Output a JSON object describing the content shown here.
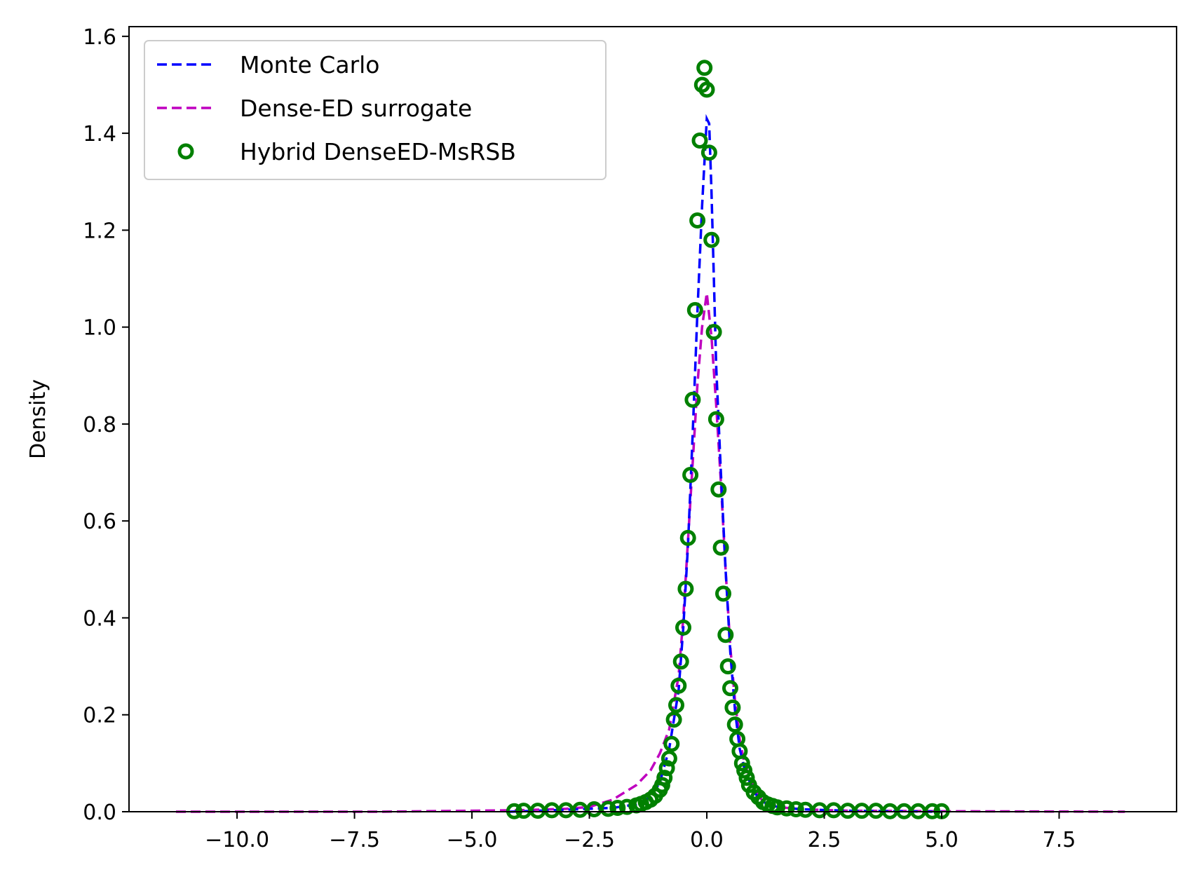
{
  "chart_data": {
    "type": "line",
    "ylabel": "Density",
    "xlim": [
      -12.3,
      10.0
    ],
    "ylim": [
      0.0,
      1.62
    ],
    "x_ticks": [
      -10.0,
      -7.5,
      -5.0,
      -2.5,
      0.0,
      2.5,
      5.0,
      7.5
    ],
    "x_tick_labels": [
      "−10.0",
      "−7.5",
      "−5.0",
      "−2.5",
      "0.0",
      "2.5",
      "5.0",
      "7.5"
    ],
    "y_ticks": [
      0.0,
      0.2,
      0.4,
      0.6,
      0.8,
      1.0,
      1.2,
      1.4,
      1.6
    ],
    "y_tick_labels": [
      "0.0",
      "0.2",
      "0.4",
      "0.6",
      "0.8",
      "1.0",
      "1.2",
      "1.4",
      "1.6"
    ],
    "grid": false,
    "legend_position": "top-left",
    "series": [
      {
        "name": "Monte Carlo",
        "style": "dashed-line",
        "color": "#0000ff",
        "x": [
          -4.2,
          -3.0,
          -2.0,
          -1.5,
          -1.2,
          -1.0,
          -0.8,
          -0.6,
          -0.5,
          -0.4,
          -0.3,
          -0.2,
          -0.1,
          0.0,
          0.05,
          0.1,
          0.15,
          0.2,
          0.3,
          0.4,
          0.5,
          0.6,
          0.7,
          0.8,
          1.0,
          1.2,
          1.5,
          2.0,
          3.0,
          5.0
        ],
        "y": [
          0.0,
          0.004,
          0.008,
          0.015,
          0.03,
          0.06,
          0.13,
          0.25,
          0.38,
          0.55,
          0.78,
          1.03,
          1.25,
          1.43,
          1.42,
          1.28,
          1.1,
          0.92,
          0.7,
          0.5,
          0.33,
          0.21,
          0.13,
          0.09,
          0.04,
          0.02,
          0.01,
          0.005,
          0.002,
          0.0
        ]
      },
      {
        "name": "Dense-ED surrogate",
        "style": "dashed-line",
        "color": "#bf00bf",
        "x": [
          -11.3,
          -7.0,
          -5.0,
          -4.0,
          -3.0,
          -2.5,
          -2.0,
          -1.5,
          -1.2,
          -1.0,
          -0.8,
          -0.6,
          -0.5,
          -0.4,
          -0.3,
          -0.2,
          -0.1,
          0.0,
          0.1,
          0.2,
          0.3,
          0.4,
          0.5,
          0.6,
          0.7,
          0.8,
          1.0,
          1.2,
          1.5,
          2.0,
          3.0,
          5.0,
          8.9
        ],
        "y": [
          0.0,
          0.0,
          0.002,
          0.003,
          0.006,
          0.01,
          0.025,
          0.055,
          0.085,
          0.12,
          0.17,
          0.28,
          0.4,
          0.56,
          0.72,
          0.88,
          1.0,
          1.07,
          0.98,
          0.84,
          0.68,
          0.5,
          0.34,
          0.23,
          0.15,
          0.1,
          0.05,
          0.02,
          0.01,
          0.005,
          0.002,
          0.001,
          0.0
        ]
      },
      {
        "name": "Hybrid DenseED-MsRSB",
        "style": "open-circle",
        "color": "#008000",
        "x": [
          -4.1,
          -3.9,
          -3.6,
          -3.3,
          -3.0,
          -2.7,
          -2.4,
          -2.1,
          -1.9,
          -1.7,
          -1.5,
          -1.4,
          -1.3,
          -1.2,
          -1.1,
          -1.0,
          -0.95,
          -0.9,
          -0.85,
          -0.8,
          -0.75,
          -0.7,
          -0.65,
          -0.6,
          -0.55,
          -0.5,
          -0.45,
          -0.4,
          -0.35,
          -0.3,
          -0.25,
          -0.2,
          -0.15,
          -0.1,
          -0.05,
          0.0,
          0.05,
          0.1,
          0.15,
          0.2,
          0.25,
          0.3,
          0.35,
          0.4,
          0.45,
          0.5,
          0.55,
          0.6,
          0.65,
          0.7,
          0.75,
          0.8,
          0.85,
          0.9,
          1.0,
          1.1,
          1.2,
          1.3,
          1.4,
          1.5,
          1.7,
          1.9,
          2.1,
          2.4,
          2.7,
          3.0,
          3.3,
          3.6,
          3.9,
          4.2,
          4.5,
          4.8,
          5.0
        ],
        "y": [
          0.001,
          0.002,
          0.002,
          0.003,
          0.003,
          0.004,
          0.005,
          0.006,
          0.008,
          0.01,
          0.013,
          0.016,
          0.02,
          0.025,
          0.033,
          0.045,
          0.055,
          0.07,
          0.09,
          0.11,
          0.14,
          0.19,
          0.22,
          0.26,
          0.31,
          0.38,
          0.46,
          0.565,
          0.695,
          0.85,
          1.035,
          1.22,
          1.385,
          1.5,
          1.535,
          1.49,
          1.36,
          1.18,
          0.99,
          0.81,
          0.665,
          0.545,
          0.45,
          0.365,
          0.3,
          0.255,
          0.215,
          0.18,
          0.15,
          0.125,
          0.1,
          0.085,
          0.07,
          0.055,
          0.04,
          0.03,
          0.02,
          0.015,
          0.012,
          0.009,
          0.007,
          0.005,
          0.004,
          0.003,
          0.003,
          0.002,
          0.002,
          0.002,
          0.001,
          0.001,
          0.001,
          0.001,
          0.001
        ]
      }
    ]
  }
}
